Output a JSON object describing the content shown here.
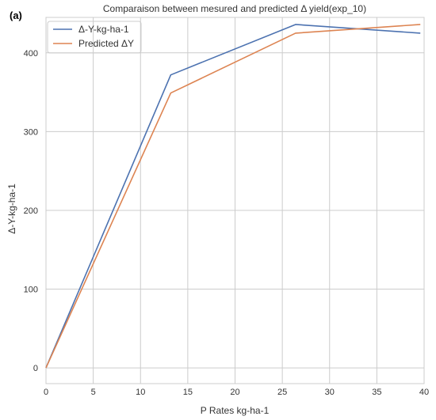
{
  "panel_label": "(a)",
  "chart_data": {
    "type": "line",
    "title": "Comparaison between mesured and predicted Δ yield(exp_10)",
    "xlabel": "P Rates kg-ha-1",
    "ylabel": "Δ-Y-kg-ha-1",
    "xlim": [
      0,
      40
    ],
    "ylim": [
      -20,
      445
    ],
    "xticks": [
      0,
      5,
      10,
      15,
      20,
      25,
      30,
      35,
      40
    ],
    "yticks": [
      0,
      100,
      200,
      300,
      400
    ],
    "grid": true,
    "legend_position": "top-left",
    "x": [
      0,
      13.2,
      26.4,
      39.6
    ],
    "series": [
      {
        "name": "Δ-Y-kg-ha-1",
        "color": "#4c72b0",
        "values": [
          0,
          372,
          436,
          425
        ]
      },
      {
        "name": "Predicted ΔY",
        "color": "#dd8452",
        "values": [
          0,
          349,
          425,
          436
        ]
      }
    ]
  }
}
